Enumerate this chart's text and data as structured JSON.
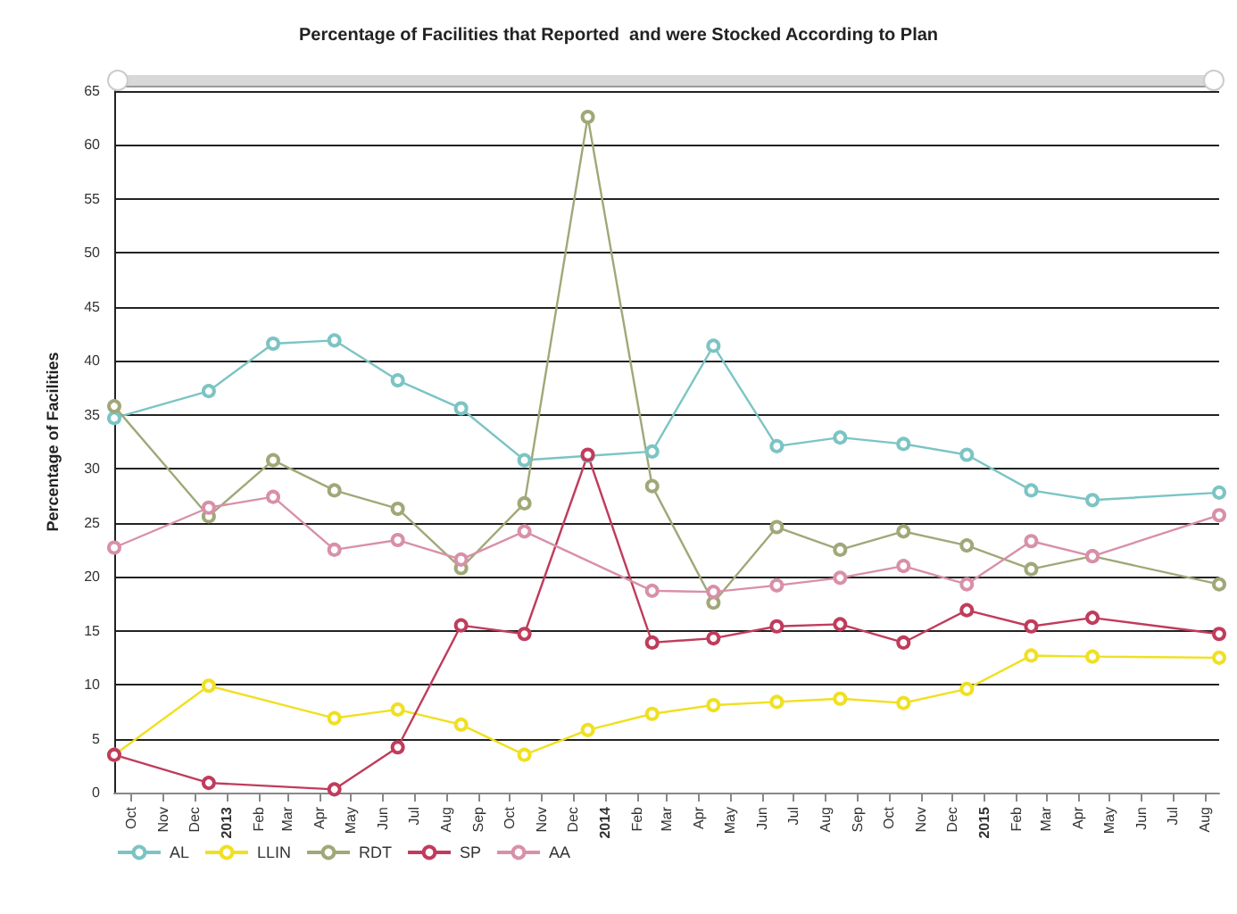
{
  "chart_data": {
    "type": "line",
    "title": "Percentage of Facilities that Reported  and were Stocked According to Plan",
    "ylabel": "Percentage of Facilities",
    "x": [
      "2012-09-15",
      "2012-12-15",
      "2013-02-15",
      "2013-04-15",
      "2013-06-15",
      "2013-08-15",
      "2013-10-15",
      "2013-12-15",
      "2014-02-15",
      "2014-04-15",
      "2014-06-15",
      "2014-08-15",
      "2014-10-15",
      "2014-12-15",
      "2015-02-15",
      "2015-04-15",
      "2015-08-15"
    ],
    "series": [
      {
        "name": "AL",
        "color": "#7cc4c4",
        "values": [
          34.7,
          37.2,
          41.6,
          41.9,
          38.2,
          35.6,
          30.8,
          31.2,
          31.6,
          41.4,
          32.1,
          32.9,
          32.3,
          31.3,
          28.0,
          27.1,
          27.8
        ]
      },
      {
        "name": "LLIN",
        "color": "#f0e020",
        "values": [
          3.5,
          9.9,
          null,
          6.9,
          7.7,
          6.3,
          3.5,
          5.8,
          7.3,
          8.1,
          8.4,
          8.7,
          8.3,
          9.6,
          12.7,
          12.6,
          12.5
        ]
      },
      {
        "name": "RDT",
        "color": "#a0a878",
        "values": [
          35.8,
          25.6,
          30.8,
          28.0,
          26.3,
          20.8,
          26.8,
          62.6,
          28.4,
          17.6,
          24.6,
          22.5,
          24.2,
          22.9,
          20.7,
          21.9,
          19.3
        ]
      },
      {
        "name": "SP",
        "color": "#c03c5c",
        "values": [
          3.5,
          0.9,
          null,
          0.3,
          4.2,
          15.5,
          14.7,
          31.3,
          13.9,
          14.3,
          15.4,
          15.6,
          13.9,
          16.9,
          15.4,
          16.2,
          14.7
        ]
      },
      {
        "name": "AA",
        "color": "#d890a8",
        "values": [
          22.7,
          26.4,
          27.4,
          22.5,
          23.4,
          21.6,
          24.2,
          null,
          18.7,
          18.6,
          19.2,
          19.9,
          21.0,
          19.3,
          23.3,
          21.9,
          25.7
        ]
      }
    ],
    "xlim": [
      "2012-09-15",
      "2015-08-15"
    ],
    "xticks": [
      {
        "value": "2012-10",
        "label": "Oct"
      },
      {
        "value": "2012-11",
        "label": "Nov"
      },
      {
        "value": "2012-12",
        "label": "Dec"
      },
      {
        "value": "2013-01",
        "label": "2013"
      },
      {
        "value": "2013-02",
        "label": "Feb"
      },
      {
        "value": "2013-03",
        "label": "Mar"
      },
      {
        "value": "2013-04",
        "label": "Apr"
      },
      {
        "value": "2013-05",
        "label": "May"
      },
      {
        "value": "2013-06",
        "label": "Jun"
      },
      {
        "value": "2013-07",
        "label": "Jul"
      },
      {
        "value": "2013-08",
        "label": "Aug"
      },
      {
        "value": "2013-09",
        "label": "Sep"
      },
      {
        "value": "2013-10",
        "label": "Oct"
      },
      {
        "value": "2013-11",
        "label": "Nov"
      },
      {
        "value": "2013-12",
        "label": "Dec"
      },
      {
        "value": "2014-01",
        "label": "2014"
      },
      {
        "value": "2014-02",
        "label": "Feb"
      },
      {
        "value": "2014-03",
        "label": "Mar"
      },
      {
        "value": "2014-04",
        "label": "Apr"
      },
      {
        "value": "2014-05",
        "label": "May"
      },
      {
        "value": "2014-06",
        "label": "Jun"
      },
      {
        "value": "2014-07",
        "label": "Jul"
      },
      {
        "value": "2014-08",
        "label": "Aug"
      },
      {
        "value": "2014-09",
        "label": "Sep"
      },
      {
        "value": "2014-10",
        "label": "Oct"
      },
      {
        "value": "2014-11",
        "label": "Nov"
      },
      {
        "value": "2014-12",
        "label": "Dec"
      },
      {
        "value": "2015-01",
        "label": "2015"
      },
      {
        "value": "2015-02",
        "label": "Feb"
      },
      {
        "value": "2015-03",
        "label": "Mar"
      },
      {
        "value": "2015-04",
        "label": "Apr"
      },
      {
        "value": "2015-05",
        "label": "May"
      },
      {
        "value": "2015-06",
        "label": "Jun"
      },
      {
        "value": "2015-07",
        "label": "Jul"
      },
      {
        "value": "2015-08",
        "label": "Aug"
      }
    ],
    "ylim": [
      0,
      65
    ],
    "yticks": [
      0,
      5,
      10,
      15,
      20,
      25,
      30,
      35,
      40,
      45,
      50,
      55,
      60,
      65
    ],
    "grid": "y",
    "legend": "bottom",
    "marker": "circle",
    "line_style": "solid"
  }
}
